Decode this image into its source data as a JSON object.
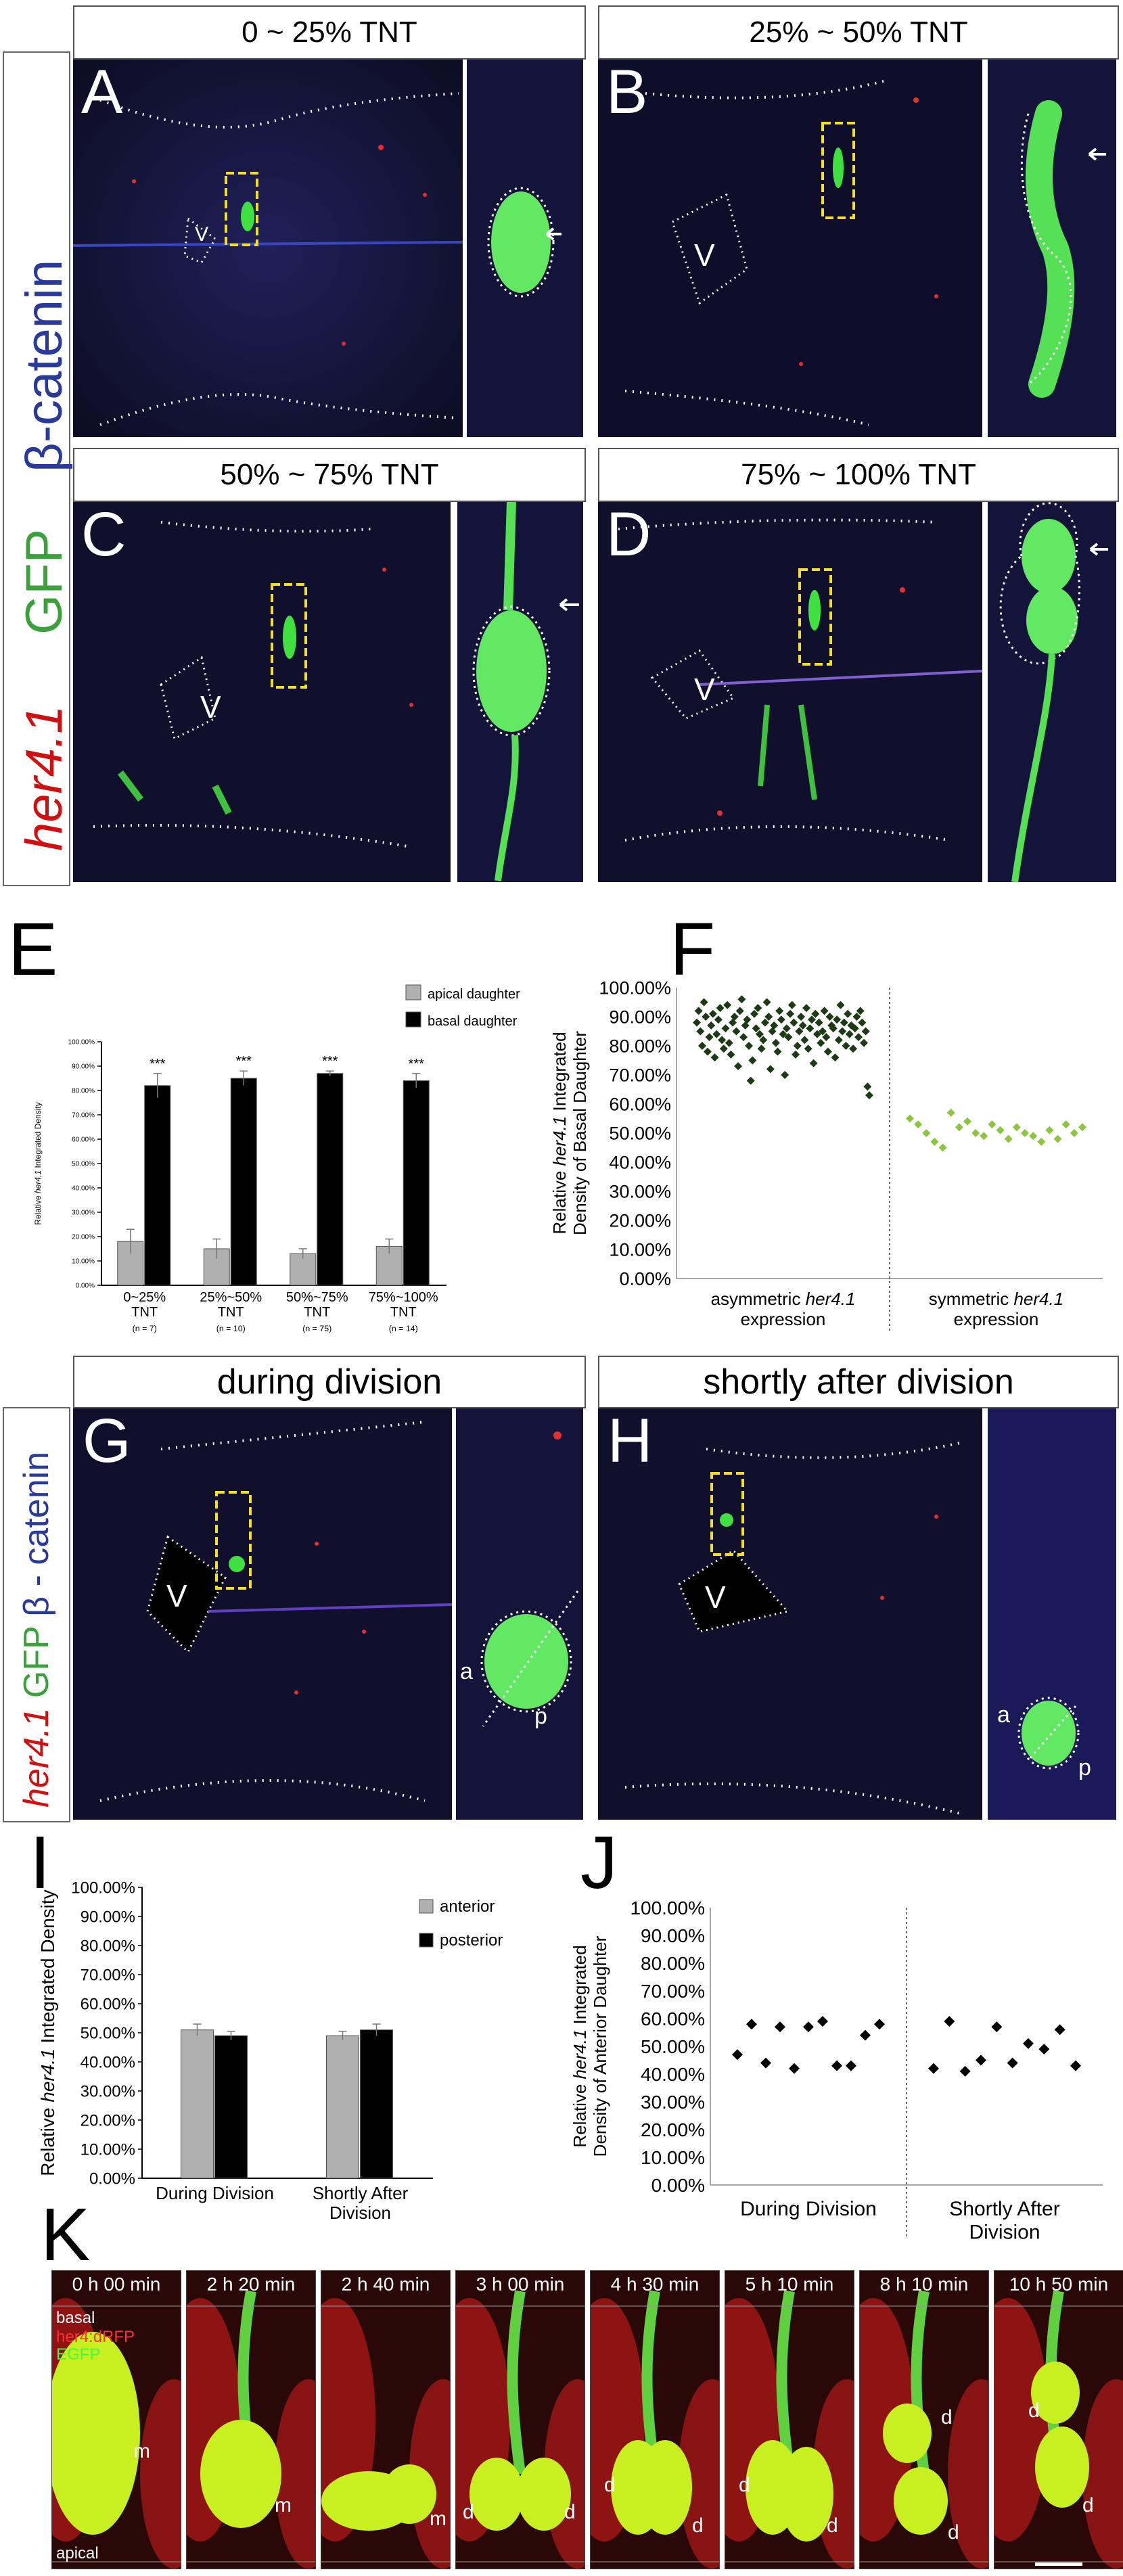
{
  "row1": {
    "headers": [
      "0 ~ 25% TNT",
      "25% ~ 50% TNT"
    ],
    "letters": [
      "A",
      "B"
    ]
  },
  "row2": {
    "headers": [
      "50% ~ 75% TNT",
      "75% ~ 100% TNT"
    ],
    "letters": [
      "C",
      "D"
    ]
  },
  "ventricle_label": "V",
  "side_labels": {
    "beta_catenin": "β-catenin",
    "gfp": "GFP",
    "her41": "her4.1"
  },
  "panel_E": {
    "letter": "E",
    "chart_data": {
      "type": "bar",
      "categories": [
        "0~25% TNT",
        "25%~50% TNT",
        "50%~75% TNT",
        "75%~100% TNT"
      ],
      "n_labels": [
        "(n = 7)",
        "(n = 10)",
        "(n = 75)",
        "(n = 14)"
      ],
      "series": [
        {
          "name": "apical daughter",
          "color": "#b0b0b0",
          "values": [
            18,
            15,
            13,
            16
          ],
          "errors": [
            5,
            4,
            2,
            3
          ]
        },
        {
          "name": "basal daughter",
          "color": "#000000",
          "values": [
            82,
            85,
            87,
            84
          ],
          "errors": [
            5,
            3,
            1,
            3
          ]
        }
      ],
      "significance": [
        "***",
        "***",
        "***",
        "***"
      ],
      "ylabel": "Relative her4.1 Integrated Density",
      "yticks": [
        "0.00%",
        "10.00%",
        "20.00%",
        "30.00%",
        "40.00%",
        "50.00%",
        "60.00%",
        "70.00%",
        "80.00%",
        "90.00%",
        "100.00%"
      ],
      "ylim": [
        0,
        100
      ]
    }
  },
  "panel_F": {
    "letter": "F",
    "chart_data": {
      "type": "scatter",
      "ylabel_line1": "Relative her4.1 Integrated",
      "ylabel_line2": "Density of Basal Daughter",
      "yticks": [
        "0.00%",
        "10.00%",
        "20.00%",
        "30.00%",
        "40.00%",
        "50.00%",
        "60.00%",
        "70.00%",
        "80.00%",
        "90.00%",
        "100.00%"
      ],
      "ylim": [
        0,
        100
      ],
      "groups": [
        {
          "label_line1": "asymmetric her4.1",
          "label_line2": "expression",
          "color": "#1c3a14",
          "values": [
            88,
            92,
            85,
            80,
            95,
            90,
            78,
            83,
            87,
            91,
            76,
            84,
            89,
            93,
            82,
            79,
            86,
            94,
            81,
            77,
            88,
            90,
            85,
            73,
            92,
            96,
            83,
            87,
            89,
            80,
            68,
            75,
            91,
            86,
            93,
            84,
            79,
            82,
            88,
            95,
            90,
            72,
            85,
            87,
            81,
            78,
            92,
            89,
            84,
            70,
            86,
            83,
            91,
            94,
            88,
            77,
            80,
            85,
            90,
            87,
            82,
            93,
            79,
            86,
            89,
            74,
            91,
            84,
            88,
            81,
            85,
            92,
            83,
            78,
            90,
            87,
            86,
            76,
            89,
            82,
            94,
            85,
            88,
            80,
            91,
            84,
            87,
            79,
            86,
            90,
            83,
            92,
            88,
            81,
            85,
            66,
            63
          ]
        },
        {
          "label_line1": "symmetric her4.1",
          "label_line2": "expression",
          "color": "#8cc63f",
          "values": [
            55,
            53,
            50,
            47,
            45,
            57,
            52,
            54,
            50,
            49,
            53,
            51,
            48,
            52,
            50,
            49,
            47,
            51,
            48,
            53,
            50,
            52
          ]
        }
      ]
    }
  },
  "row3": {
    "headers": [
      "during division",
      "shortly after division"
    ],
    "letters": [
      "G",
      "H"
    ],
    "daughter_labels": [
      "a",
      "p"
    ],
    "side_label": [
      "her4.1",
      " GFP ",
      "β - catenin"
    ]
  },
  "panel_I": {
    "letter": "I",
    "chart_data": {
      "type": "bar",
      "categories": [
        "During Division",
        "Shortly After Division"
      ],
      "series": [
        {
          "name": "anterior",
          "color": "#b0b0b0",
          "values": [
            51,
            49
          ],
          "errors": [
            2,
            1.5
          ]
        },
        {
          "name": "posterior",
          "color": "#000000",
          "values": [
            49,
            51
          ],
          "errors": [
            1.5,
            2
          ]
        }
      ],
      "ylabel": "Relative her4.1 Integrated Density",
      "yticks": [
        "0.00%",
        "10.00%",
        "20.00%",
        "30.00%",
        "40.00%",
        "50.00%",
        "60.00%",
        "70.00%",
        "80.00%",
        "90.00%",
        "100.00%"
      ],
      "ylim": [
        0,
        100
      ]
    }
  },
  "panel_J": {
    "letter": "J",
    "chart_data": {
      "type": "scatter",
      "ylabel_line1": "Relative her4.1 Integrated",
      "ylabel_line2": "Density of Anterior Daughter",
      "yticks": [
        "0.00%",
        "10.00%",
        "20.00%",
        "30.00%",
        "40.00%",
        "50.00%",
        "60.00%",
        "70.00%",
        "80.00%",
        "90.00%",
        "100.00%"
      ],
      "ylim": [
        0,
        100
      ],
      "groups": [
        {
          "label": "During Division",
          "color": "#000000",
          "values": [
            47,
            58,
            44,
            57,
            42,
            57,
            59,
            43,
            43,
            54,
            58
          ]
        },
        {
          "label_line1": "Shortly After",
          "label_line2": "Division",
          "color": "#000000",
          "values": [
            42,
            59,
            41,
            45,
            57,
            44,
            51,
            49,
            56,
            43
          ]
        }
      ]
    }
  },
  "panel_K": {
    "letter": "K",
    "times": [
      "0 h 00 min",
      "2 h 20 min",
      "2 h 40 min",
      "3 h 00 min",
      "4 h 30 min",
      "5 h 10 min",
      "8 h 10 min",
      "10 h 50 min"
    ],
    "legend": {
      "basal": "basal",
      "dRFP": "her4:dRFP",
      "EGFP": "EGFP",
      "apical": "apical"
    },
    "marks": {
      "m": "m",
      "d": "d"
    }
  }
}
